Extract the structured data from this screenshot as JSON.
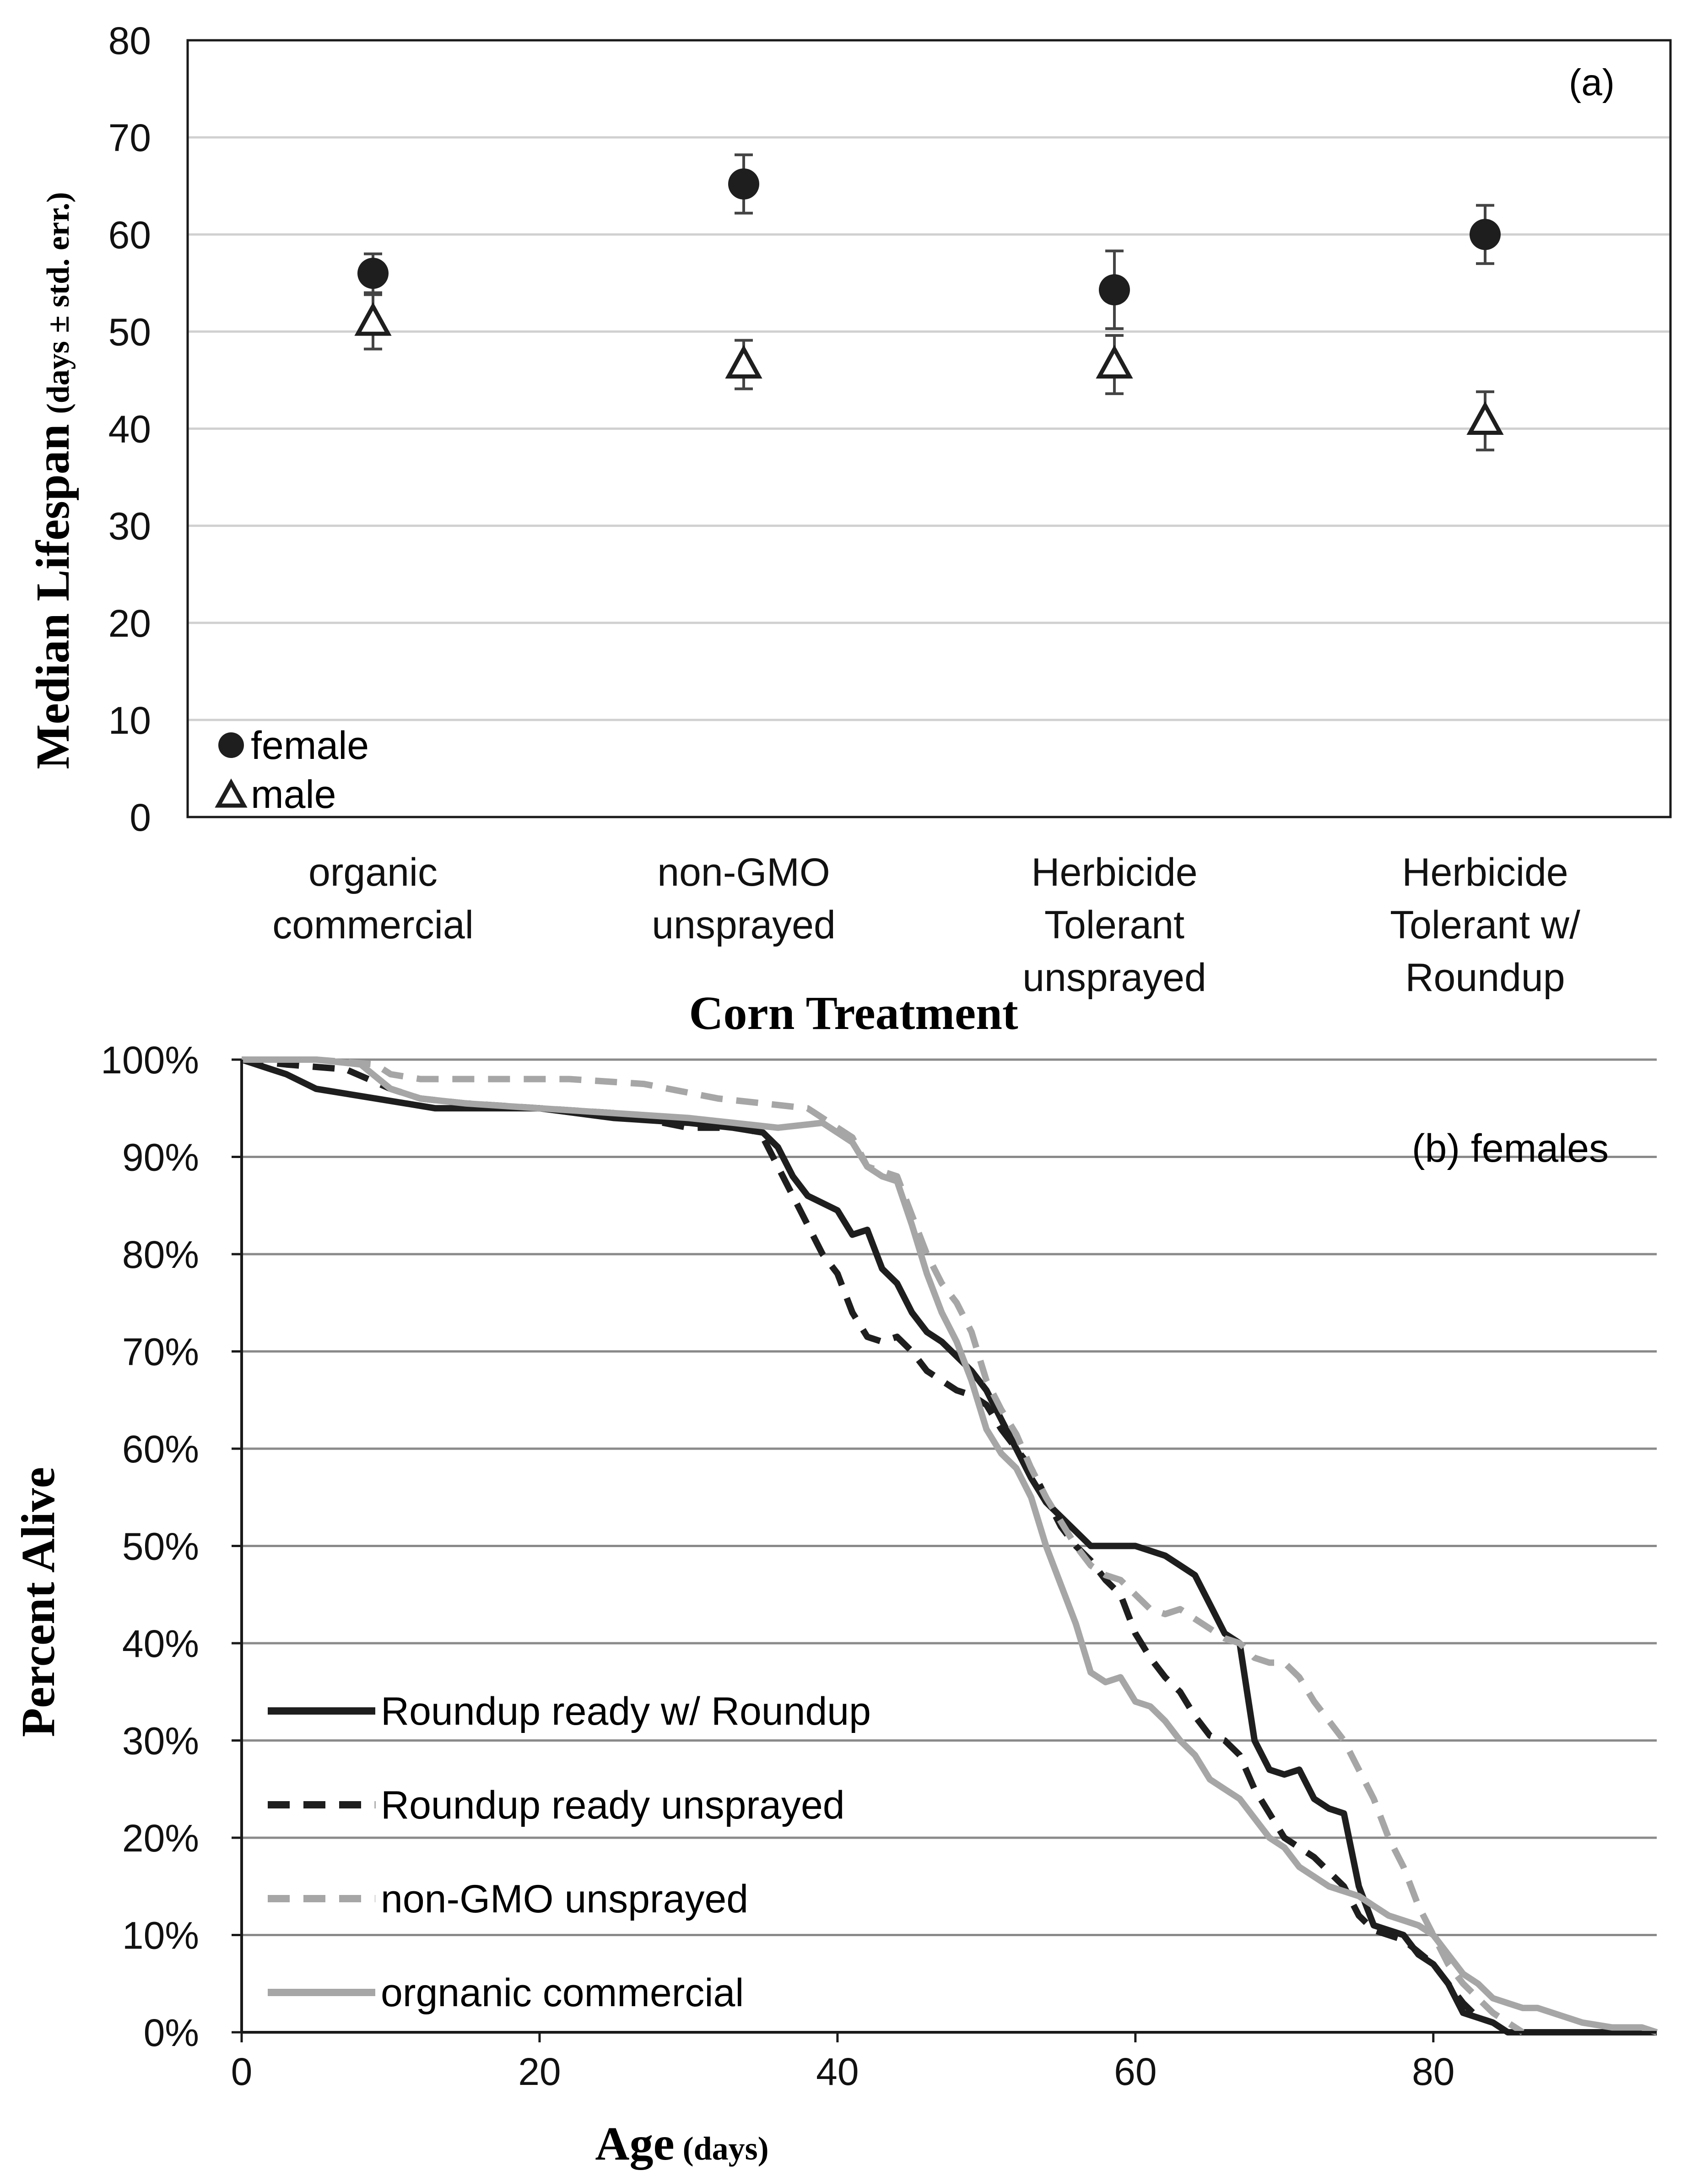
{
  "colors": {
    "frame": "#1a1a1a",
    "grid_a": "#d0d0d0",
    "grid_b": "#8a8a8a",
    "dark": "#1e1e1e",
    "light": "#a6a6a6",
    "text": "#111111"
  },
  "chart_data": [
    {
      "type": "scatter",
      "panel_label": "(a)",
      "title": "",
      "xlabel": "Corn Treatment",
      "ylabel_main": "Median Lifespan",
      "ylabel_sub": "(days ± std. err.)",
      "ylim": [
        0,
        80
      ],
      "yticks": [
        "0",
        "10",
        "20",
        "30",
        "40",
        "50",
        "60",
        "70",
        "80"
      ],
      "grid": true,
      "legend_position": "bottom-left",
      "categories": [
        [
          "organic",
          "commercial"
        ],
        [
          "non-GMO",
          "unsprayed"
        ],
        [
          "Herbicide",
          "Tolerant",
          "unsprayed"
        ],
        [
          "Herbicide",
          "Tolerant w/",
          "Roundup"
        ]
      ],
      "series": [
        {
          "name": "female",
          "marker": "filled-circle",
          "values": [
            56,
            65.2,
            54.3,
            60
          ],
          "errors": [
            2,
            3,
            4,
            3
          ]
        },
        {
          "name": "male",
          "marker": "open-triangle",
          "values": [
            51,
            46.6,
            46.6,
            40.8
          ],
          "errors": [
            2.8,
            2.5,
            3,
            3
          ]
        }
      ]
    },
    {
      "type": "line",
      "panel_label": "(b) females",
      "title": "",
      "xlabel_main": "Age",
      "xlabel_sub": "(days)",
      "ylabel": "Percent Alive",
      "xlim": [
        0,
        95
      ],
      "ylim": [
        0,
        100
      ],
      "xticks": [
        "0",
        "20",
        "40",
        "60",
        "80"
      ],
      "yticks": [
        "0%",
        "10%",
        "20%",
        "30%",
        "40%",
        "50%",
        "60%",
        "70%",
        "80%",
        "90%",
        "100%"
      ],
      "grid": true,
      "legend_position": "bottom-left",
      "series": [
        {
          "name": "Roundup ready w/ Roundup",
          "color": "dark",
          "dash": "solid",
          "points": [
            [
              0,
              100
            ],
            [
              2,
              99
            ],
            [
              3,
              98.5
            ],
            [
              5,
              97
            ],
            [
              7,
              96.5
            ],
            [
              9,
              96
            ],
            [
              11,
              95.5
            ],
            [
              13,
              95
            ],
            [
              16,
              95
            ],
            [
              20,
              95
            ],
            [
              25,
              94
            ],
            [
              30,
              93.5
            ],
            [
              33,
              93
            ],
            [
              35,
              92.5
            ],
            [
              36,
              91
            ],
            [
              37,
              88
            ],
            [
              38,
              86
            ],
            [
              40,
              84.5
            ],
            [
              41,
              82
            ],
            [
              42,
              82.5
            ],
            [
              43,
              78.5
            ],
            [
              44,
              77
            ],
            [
              45,
              74
            ],
            [
              46,
              72
            ],
            [
              47,
              71
            ],
            [
              48,
              69.5
            ],
            [
              49,
              68
            ],
            [
              50,
              66
            ],
            [
              51,
              63
            ],
            [
              52,
              60
            ],
            [
              53,
              57
            ],
            [
              54,
              54.5
            ],
            [
              55,
              53
            ],
            [
              56,
              51.5
            ],
            [
              57,
              50
            ],
            [
              58,
              50
            ],
            [
              60,
              50
            ],
            [
              61,
              49.5
            ],
            [
              62,
              49
            ],
            [
              63,
              48
            ],
            [
              64,
              47
            ],
            [
              65,
              44
            ],
            [
              66,
              41
            ],
            [
              67,
              40
            ],
            [
              67.5,
              35
            ],
            [
              68,
              30
            ],
            [
              69,
              27
            ],
            [
              70,
              26.5
            ],
            [
              71,
              27
            ],
            [
              72,
              24
            ],
            [
              73,
              23
            ],
            [
              74,
              22.5
            ],
            [
              75,
              15
            ],
            [
              76,
              11
            ],
            [
              77,
              10.5
            ],
            [
              78,
              10
            ],
            [
              79,
              8
            ],
            [
              80,
              7
            ],
            [
              81,
              5
            ],
            [
              82,
              2
            ],
            [
              83,
              1.5
            ],
            [
              84,
              1
            ],
            [
              85,
              0
            ],
            [
              90,
              0
            ],
            [
              95,
              0
            ]
          ]
        },
        {
          "name": "Roundup ready unsprayed",
          "color": "dark",
          "dash": "dashed",
          "points": [
            [
              0,
              100
            ],
            [
              3,
              99.5
            ],
            [
              7,
              99
            ],
            [
              10,
              97
            ],
            [
              12,
              96
            ],
            [
              15,
              95.5
            ],
            [
              20,
              95
            ],
            [
              25,
              94.5
            ],
            [
              30,
              93
            ],
            [
              34,
              93
            ],
            [
              35,
              92
            ],
            [
              36,
              89
            ],
            [
              37,
              86
            ],
            [
              38,
              83
            ],
            [
              39,
              80
            ],
            [
              40,
              78
            ],
            [
              41,
              74
            ],
            [
              42,
              71.5
            ],
            [
              43,
              71
            ],
            [
              44,
              71.5
            ],
            [
              45,
              70
            ],
            [
              46,
              68
            ],
            [
              47,
              67
            ],
            [
              48,
              66
            ],
            [
              49,
              65.5
            ],
            [
              50,
              64.5
            ],
            [
              51,
              62
            ],
            [
              52,
              60
            ],
            [
              53,
              58
            ],
            [
              54,
              55
            ],
            [
              55,
              52
            ],
            [
              56,
              50
            ],
            [
              57,
              48.5
            ],
            [
              58,
              46.5
            ],
            [
              59,
              45
            ],
            [
              60,
              41
            ],
            [
              61,
              38.5
            ],
            [
              62,
              36.5
            ],
            [
              63,
              35
            ],
            [
              64,
              32.5
            ],
            [
              65,
              30.5
            ],
            [
              66,
              30
            ],
            [
              67,
              28.5
            ],
            [
              68,
              25
            ],
            [
              69,
              22.5
            ],
            [
              70,
              20
            ],
            [
              72,
              18
            ],
            [
              74,
              15
            ],
            [
              75,
              12
            ],
            [
              76,
              10.5
            ],
            [
              78,
              9.5
            ],
            [
              80,
              7
            ],
            [
              81,
              5
            ],
            [
              82,
              3
            ],
            [
              83,
              1.5
            ],
            [
              84,
              1
            ]
          ]
        },
        {
          "name": "non-GMO unsprayed",
          "color": "light",
          "dash": "dashed",
          "points": [
            [
              0,
              100
            ],
            [
              5,
              100
            ],
            [
              9,
              99.5
            ],
            [
              10,
              98.5
            ],
            [
              12,
              98
            ],
            [
              17,
              98
            ],
            [
              22,
              98
            ],
            [
              27,
              97.5
            ],
            [
              32,
              96
            ],
            [
              35,
              95.5
            ],
            [
              38,
              95
            ],
            [
              40,
              93
            ],
            [
              41,
              92
            ],
            [
              42,
              89
            ],
            [
              43,
              88.5
            ],
            [
              44,
              88
            ],
            [
              45,
              84
            ],
            [
              46,
              80
            ],
            [
              47,
              77
            ],
            [
              48,
              75
            ],
            [
              49,
              72
            ],
            [
              50,
              67
            ],
            [
              51,
              64
            ],
            [
              52,
              61.5
            ],
            [
              53,
              58
            ],
            [
              54,
              55
            ],
            [
              55,
              52.5
            ],
            [
              56,
              50
            ],
            [
              57,
              48
            ],
            [
              58,
              47
            ],
            [
              59,
              46.5
            ],
            [
              60,
              45
            ],
            [
              61,
              43.5
            ],
            [
              62,
              43
            ],
            [
              63,
              43.5
            ],
            [
              64,
              42.5
            ],
            [
              65,
              41.5
            ],
            [
              66,
              40.5
            ],
            [
              67,
              40
            ],
            [
              68,
              38.5
            ],
            [
              69,
              38
            ],
            [
              70,
              38
            ],
            [
              71,
              36.5
            ],
            [
              72,
              34
            ],
            [
              73,
              32
            ],
            [
              74,
              30
            ],
            [
              75,
              27
            ],
            [
              76,
              24
            ],
            [
              77,
              20
            ],
            [
              78,
              17
            ],
            [
              79,
              13
            ],
            [
              80,
              10
            ],
            [
              81,
              7
            ],
            [
              82,
              5
            ],
            [
              83,
              3.5
            ],
            [
              84,
              2
            ],
            [
              85,
              1
            ],
            [
              86,
              0
            ]
          ]
        },
        {
          "name": "orgnanic commercial",
          "color": "light",
          "dash": "solid",
          "points": [
            [
              0,
              100
            ],
            [
              5,
              100
            ],
            [
              8,
              99.5
            ],
            [
              10,
              97
            ],
            [
              12,
              96
            ],
            [
              15,
              95.5
            ],
            [
              20,
              95
            ],
            [
              25,
              94.5
            ],
            [
              30,
              94
            ],
            [
              33,
              93.5
            ],
            [
              36,
              93
            ],
            [
              39,
              93.5
            ],
            [
              40,
              92.5
            ],
            [
              41,
              91.5
            ],
            [
              42,
              89
            ],
            [
              43,
              88
            ],
            [
              44,
              87.5
            ],
            [
              45,
              83
            ],
            [
              46,
              78
            ],
            [
              47,
              74
            ],
            [
              48,
              71
            ],
            [
              49,
              67
            ],
            [
              50,
              62
            ],
            [
              51,
              59.5
            ],
            [
              52,
              58
            ],
            [
              53,
              55
            ],
            [
              54,
              50
            ],
            [
              55,
              46
            ],
            [
              56,
              42
            ],
            [
              57,
              37
            ],
            [
              58,
              36
            ],
            [
              59,
              36.5
            ],
            [
              60,
              34
            ],
            [
              61,
              33.5
            ],
            [
              62,
              32
            ],
            [
              63,
              30
            ],
            [
              64,
              28.5
            ],
            [
              65,
              26
            ],
            [
              66,
              25
            ],
            [
              67,
              24
            ],
            [
              68,
              22
            ],
            [
              69,
              20
            ],
            [
              70,
              19
            ],
            [
              71,
              17
            ],
            [
              72,
              16
            ],
            [
              73,
              15
            ],
            [
              74,
              14.5
            ],
            [
              75,
              14
            ],
            [
              76,
              13
            ],
            [
              77,
              12
            ],
            [
              78,
              11.5
            ],
            [
              79,
              11
            ],
            [
              80,
              10
            ],
            [
              81,
              8
            ],
            [
              82,
              6
            ],
            [
              83,
              5
            ],
            [
              84,
              3.5
            ],
            [
              85,
              3
            ],
            [
              86,
              2.5
            ],
            [
              87,
              2.5
            ],
            [
              88,
              2
            ],
            [
              89,
              1.5
            ],
            [
              90,
              1
            ],
            [
              92,
              0.5
            ],
            [
              94,
              0.5
            ],
            [
              95,
              0
            ]
          ]
        }
      ]
    }
  ]
}
